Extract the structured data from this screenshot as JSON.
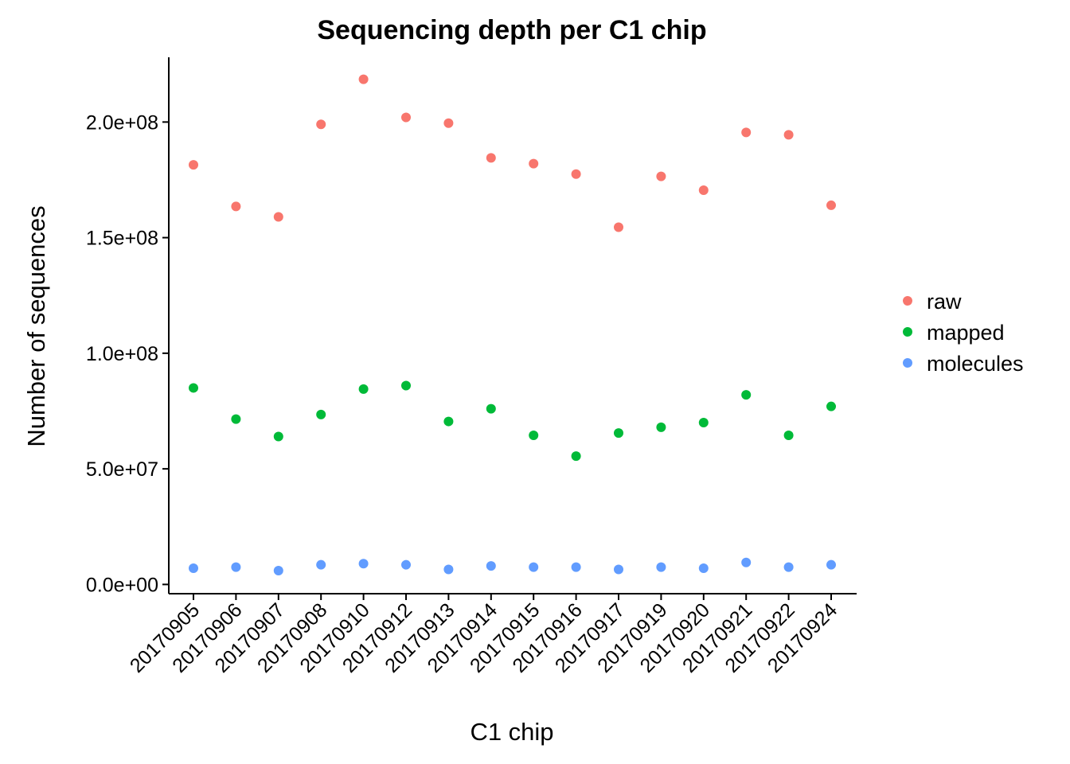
{
  "chart_data": {
    "type": "scatter",
    "title": "Sequencing depth per C1 chip",
    "xlabel": "C1 chip",
    "ylabel": "Number of sequences",
    "categories": [
      "20170905",
      "20170906",
      "20170907",
      "20170908",
      "20170910",
      "20170912",
      "20170913",
      "20170914",
      "20170915",
      "20170916",
      "20170917",
      "20170919",
      "20170920",
      "20170921",
      "20170922",
      "20170924"
    ],
    "ylim": [
      -4000000,
      228000000
    ],
    "yticks": [
      0,
      50000000,
      100000000,
      150000000,
      200000000
    ],
    "ytick_labels": [
      "0.0e+00",
      "5.0e+07",
      "1.0e+08",
      "1.5e+08",
      "2.0e+08"
    ],
    "grid": false,
    "legend_position": "right",
    "series": [
      {
        "name": "raw",
        "color": "#F8766D",
        "values": [
          181500000,
          163500000,
          159000000,
          199000000,
          218500000,
          202000000,
          199500000,
          184500000,
          182000000,
          177500000,
          154500000,
          176500000,
          170500000,
          195500000,
          194500000,
          164000000
        ]
      },
      {
        "name": "mapped",
        "color": "#00BA38",
        "values": [
          85000000,
          71500000,
          64000000,
          73500000,
          84500000,
          86000000,
          70500000,
          76000000,
          64500000,
          55500000,
          65500000,
          68000000,
          70000000,
          82000000,
          64500000,
          77000000
        ]
      },
      {
        "name": "molecules",
        "color": "#619CFF",
        "values": [
          7000000,
          7500000,
          6000000,
          8500000,
          9000000,
          8500000,
          6500000,
          8000000,
          7500000,
          7500000,
          6500000,
          7500000,
          7000000,
          9500000,
          7500000,
          8500000
        ]
      }
    ]
  }
}
